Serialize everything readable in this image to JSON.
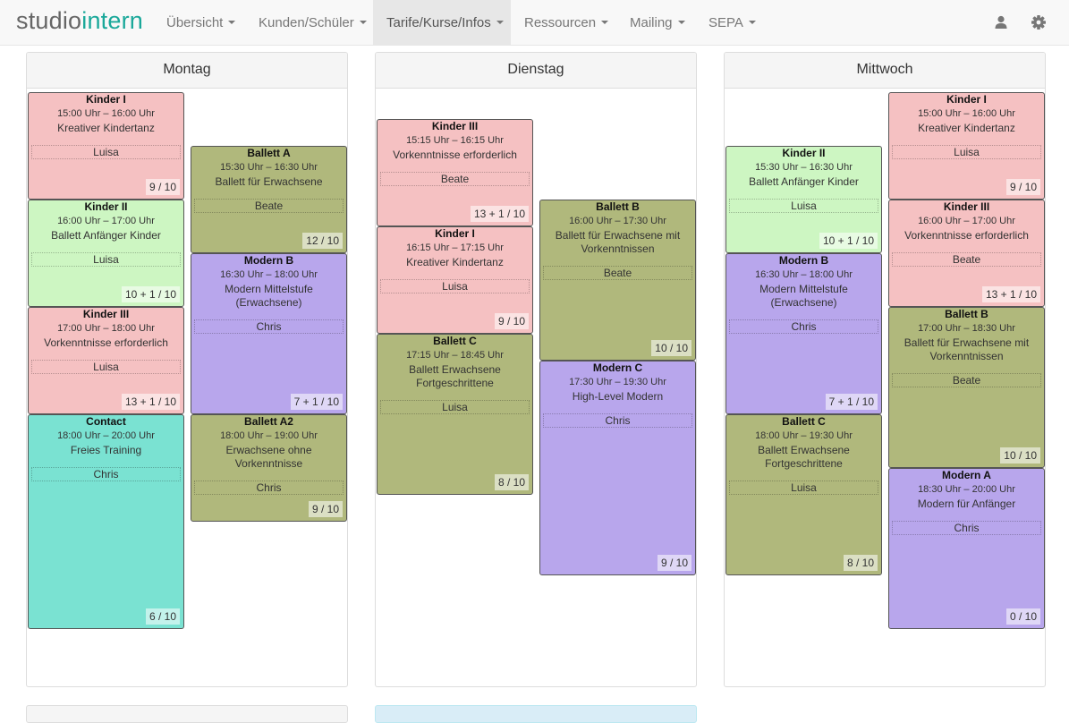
{
  "brand": {
    "part1": "studio",
    "part2": "intern"
  },
  "nav": [
    {
      "label": "Übersicht"
    },
    {
      "label": "Kunden/Schüler"
    },
    {
      "label": "Tarife/Kurse/Infos"
    },
    {
      "label": "Ressourcen"
    },
    {
      "label": "Mailing"
    },
    {
      "label": "SEPA"
    }
  ],
  "icons": {
    "user": "user-icon",
    "settings": "gear-icon"
  },
  "colors": {
    "pink": "#f5c1c2",
    "green": "#cdf6c2",
    "olive": "#b0b87c",
    "purple": "#b8a6ec",
    "teal": "#7ae2d2",
    "brand": "#1aa89a"
  },
  "days": [
    {
      "name": "Montag",
      "courses": [
        {
          "title": "Kinder I",
          "time": "15:00 Uhr – 16:00 Uhr",
          "desc": "Kreativer Kindertanz",
          "teacher": "Luisa",
          "count": "9 / 10",
          "color": "pink"
        },
        {
          "title": "Kinder II",
          "time": "16:00 Uhr – 17:00 Uhr",
          "desc": "Ballett Anfänger Kinder",
          "teacher": "Luisa",
          "count": "10 + 1 / 10",
          "color": "green"
        },
        {
          "title": "Kinder III",
          "time": "17:00 Uhr – 18:00 Uhr",
          "desc": "Vorkenntnisse erforderlich",
          "teacher": "Luisa",
          "count": "13 + 1 / 10",
          "color": "pink"
        },
        {
          "title": "Contact",
          "time": "18:00 Uhr – 20:00 Uhr",
          "desc": "Freies Training",
          "teacher": "Chris",
          "count": "6 / 10",
          "color": "teal"
        },
        {
          "title": "Ballett A",
          "time": "15:30 Uhr – 16:30 Uhr",
          "desc": "Ballett für Erwachsene",
          "teacher": "Beate",
          "count": "12 / 10",
          "color": "olive"
        },
        {
          "title": "Modern B",
          "time": "16:30 Uhr – 18:00 Uhr",
          "desc": "Modern Mittelstufe (Erwachsene)",
          "teacher": "Chris",
          "count": "7 + 1 / 10",
          "color": "purple"
        },
        {
          "title": "Ballett A2",
          "time": "18:00 Uhr – 19:00 Uhr",
          "desc": "Erwachsene ohne Vorkenntnisse",
          "teacher": "Chris",
          "count": "9 / 10",
          "color": "olive"
        }
      ]
    },
    {
      "name": "Dienstag",
      "courses": [
        {
          "title": "Kinder III",
          "time": "15:15 Uhr – 16:15 Uhr",
          "desc": "Vorkenntnisse erforderlich",
          "teacher": "Beate",
          "count": "13 + 1 / 10",
          "color": "pink"
        },
        {
          "title": "Kinder I",
          "time": "16:15 Uhr – 17:15 Uhr",
          "desc": "Kreativer Kindertanz",
          "teacher": "Luisa",
          "count": "9 / 10",
          "color": "pink"
        },
        {
          "title": "Ballett C",
          "time": "17:15 Uhr – 18:45 Uhr",
          "desc": "Ballett Erwachsene Fortgeschrittene",
          "teacher": "Luisa",
          "count": "8 / 10",
          "color": "olive"
        },
        {
          "title": "Ballett B",
          "time": "16:00 Uhr – 17:30 Uhr",
          "desc": "Ballett für Erwachsene mit Vorkenntnissen",
          "teacher": "Beate",
          "count": "10 / 10",
          "color": "olive"
        },
        {
          "title": "Modern C",
          "time": "17:30 Uhr – 19:30 Uhr",
          "desc": "High-Level Modern",
          "teacher": "Chris",
          "count": "9 / 10",
          "color": "purple"
        }
      ]
    },
    {
      "name": "Mittwoch",
      "courses": [
        {
          "title": "Kinder II",
          "time": "15:30 Uhr – 16:30 Uhr",
          "desc": "Ballett Anfänger Kinder",
          "teacher": "Luisa",
          "count": "10 + 1 / 10",
          "color": "green"
        },
        {
          "title": "Modern B",
          "time": "16:30 Uhr – 18:00 Uhr",
          "desc": "Modern Mittelstufe (Erwachsene)",
          "teacher": "Chris",
          "count": "7 + 1 / 10",
          "color": "purple"
        },
        {
          "title": "Ballett C",
          "time": "18:00 Uhr – 19:30 Uhr",
          "desc": "Ballett Erwachsene Fortgeschrittene",
          "teacher": "Luisa",
          "count": "8 / 10",
          "color": "olive"
        },
        {
          "title": "Kinder I",
          "time": "15:00 Uhr – 16:00 Uhr",
          "desc": "Kreativer Kindertanz",
          "teacher": "Luisa",
          "count": "9 / 10",
          "color": "pink"
        },
        {
          "title": "Kinder III",
          "time": "16:00 Uhr – 17:00 Uhr",
          "desc": "Vorkenntnisse erforderlich",
          "teacher": "Beate",
          "count": "13 + 1 / 10",
          "color": "pink"
        },
        {
          "title": "Ballett B",
          "time": "17:00 Uhr – 18:30 Uhr",
          "desc": "Ballett für Erwachsene mit Vorkenntnissen",
          "teacher": "Beate",
          "count": "10 / 10",
          "color": "olive"
        },
        {
          "title": "Modern A",
          "time": "18:30 Uhr – 20:00 Uhr",
          "desc": "Modern für Anfänger",
          "teacher": "Chris",
          "count": "0 / 10",
          "color": "purple"
        }
      ]
    }
  ]
}
